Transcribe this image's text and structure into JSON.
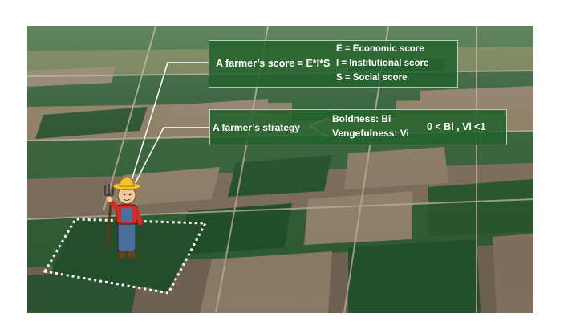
{
  "score_box": {
    "label": "A farmer’s score = E*I*S",
    "definitions": [
      "E = Economic score",
      "I = Institutional score",
      "S = Social score"
    ]
  },
  "strategy_box": {
    "label": "A farmer’s strategy",
    "traits": [
      "Boldness: Bi",
      "Vengefulness: Vi"
    ],
    "constraint": "0 < Bi , Vi <1"
  },
  "colors": {
    "box_fill": "#22622c",
    "box_border": "#e6f0e6",
    "text": "#ffffff",
    "field_outline": "#ffffff",
    "farmer_shirt": "#d62b24",
    "farmer_overalls": "#4d6f9c",
    "farmer_hat": "#f2c230"
  },
  "icons": [
    "farmer-icon",
    "pitchfork-icon"
  ]
}
